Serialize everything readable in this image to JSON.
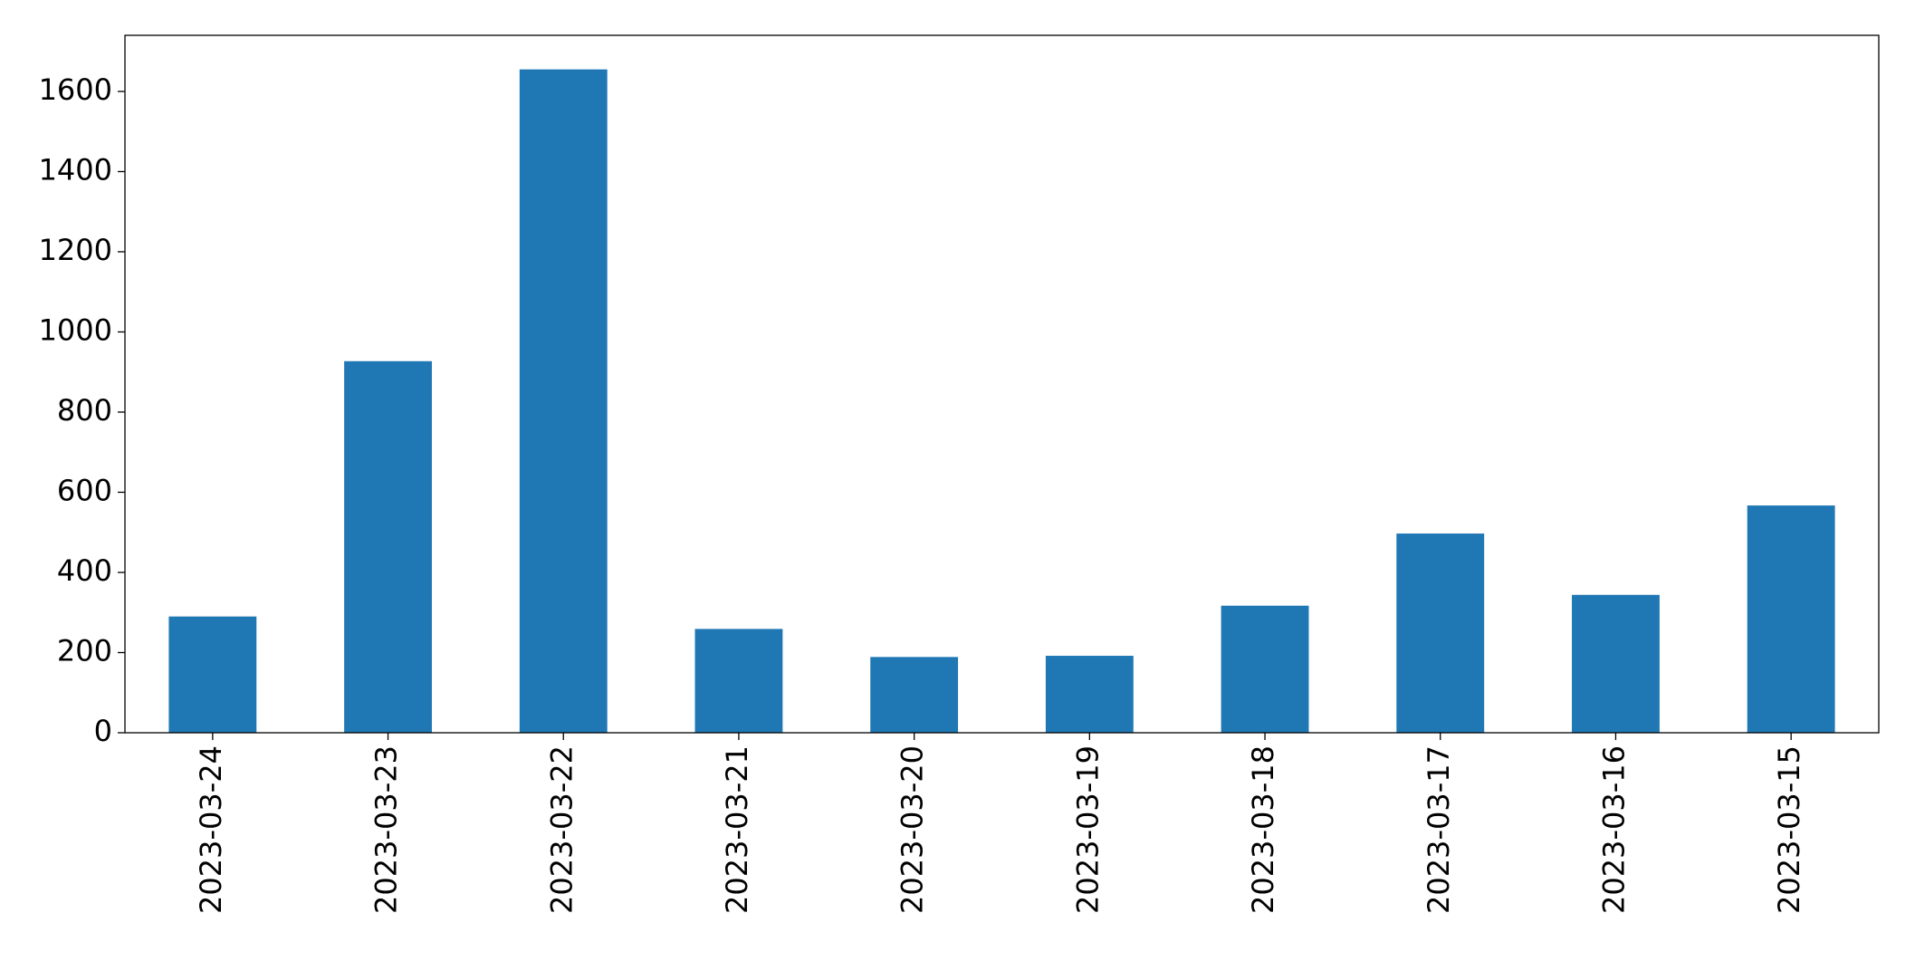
{
  "chart_data": {
    "type": "bar",
    "categories": [
      "2023-03-24",
      "2023-03-23",
      "2023-03-22",
      "2023-03-21",
      "2023-03-20",
      "2023-03-19",
      "2023-03-18",
      "2023-03-17",
      "2023-03-16",
      "2023-03-15"
    ],
    "values": [
      290,
      927,
      1655,
      259,
      189,
      192,
      317,
      497,
      344,
      567
    ],
    "color": "#1f77b4",
    "ylim": [
      0,
      1740
    ],
    "yticks": [
      0,
      200,
      400,
      600,
      800,
      1000,
      1200,
      1400,
      1600
    ],
    "grid": false
  }
}
